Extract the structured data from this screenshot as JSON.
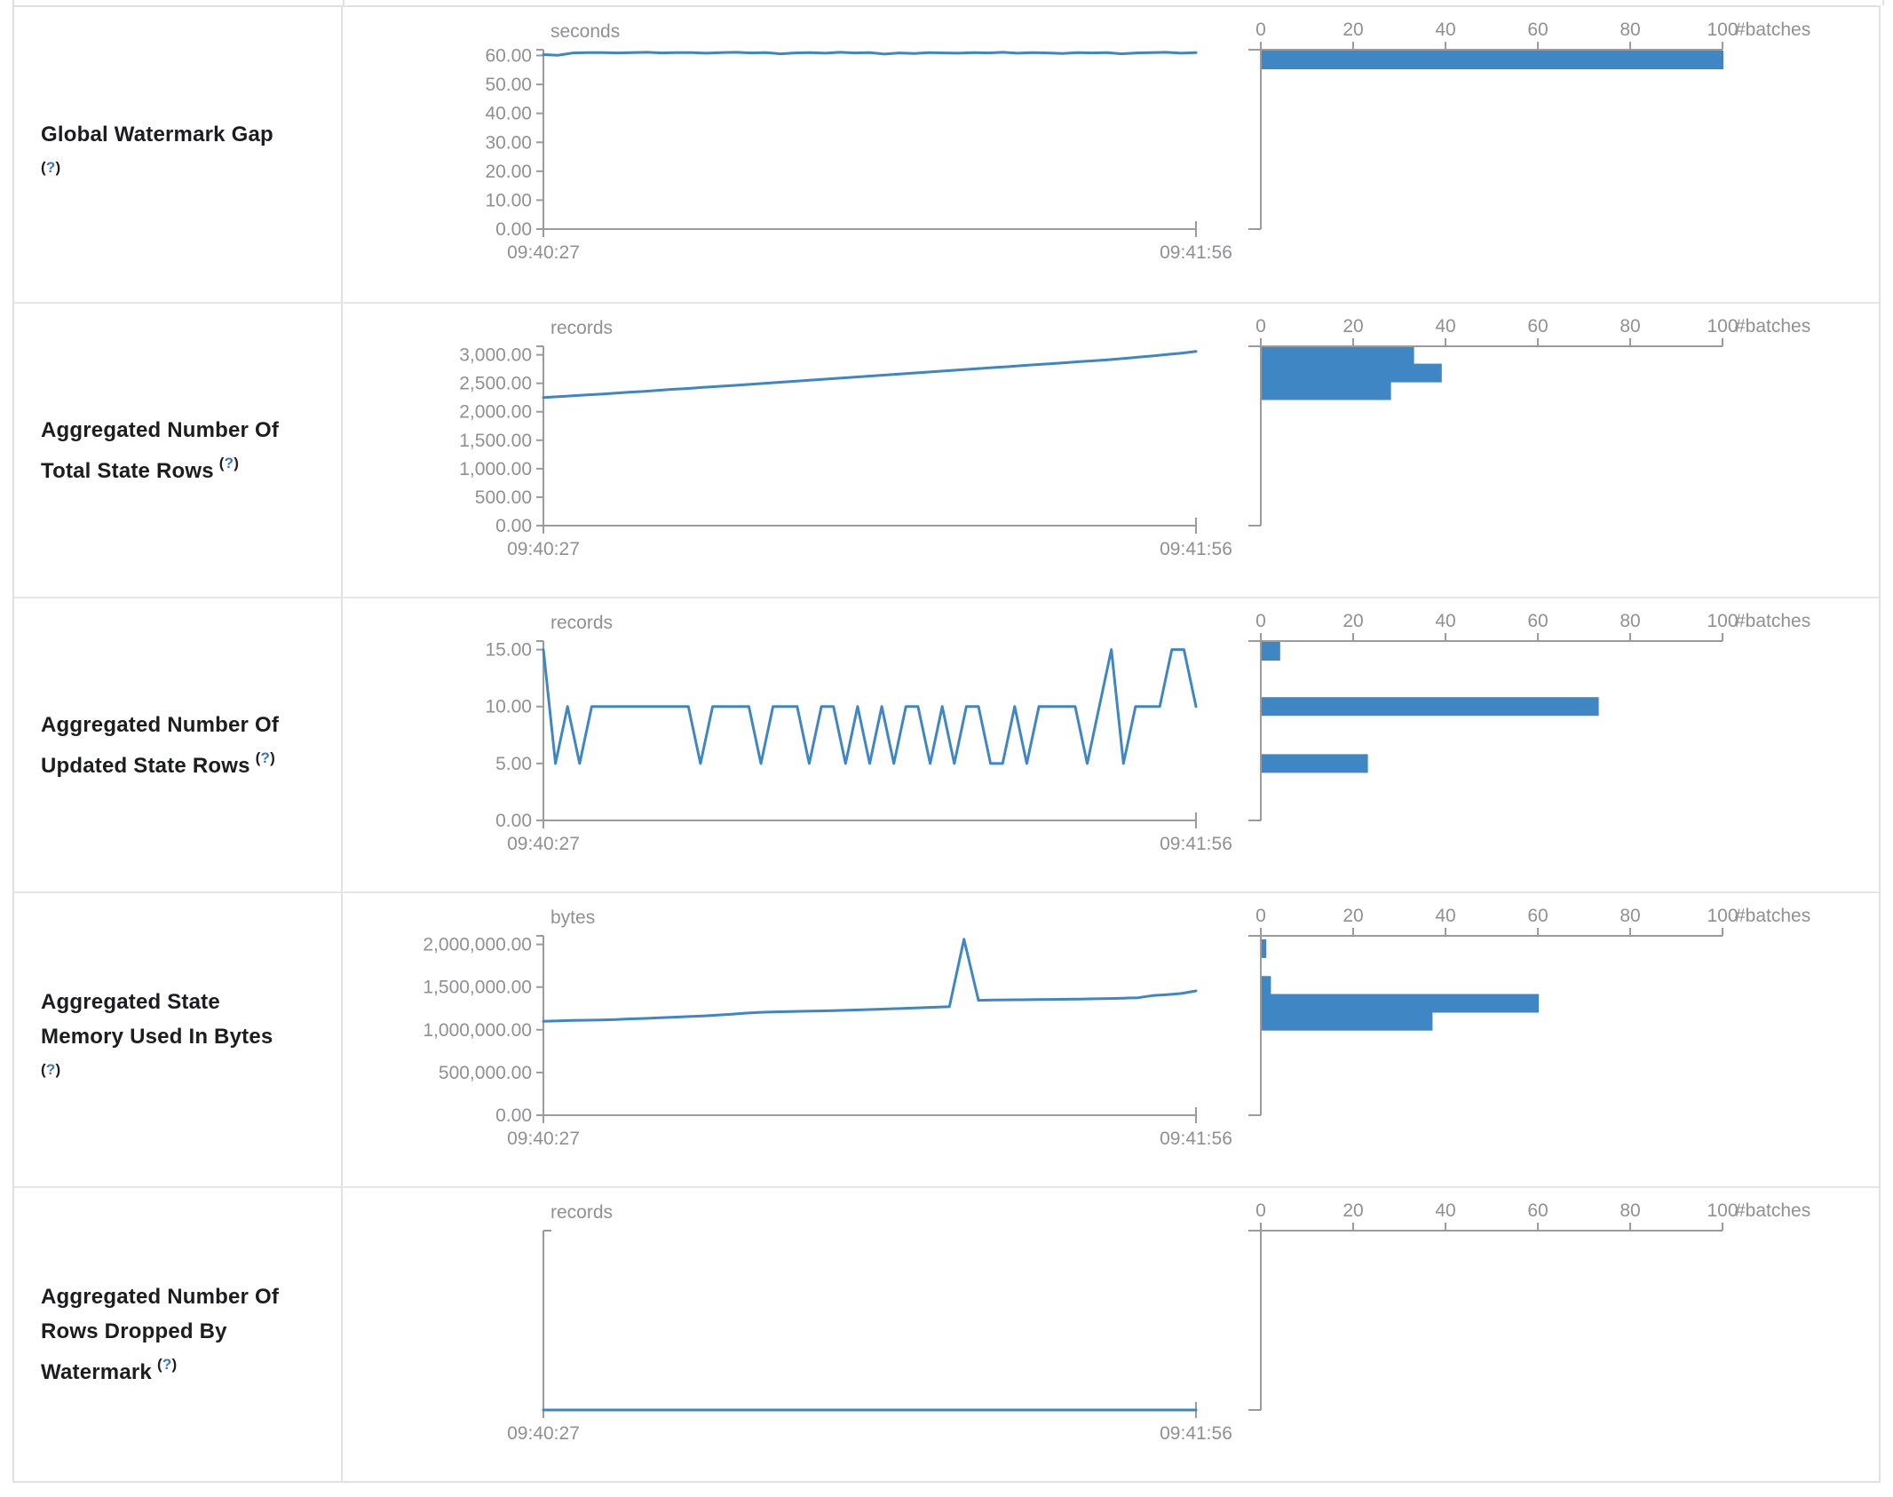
{
  "colors": {
    "series_blue": "#3e86c4",
    "axis_gray": "#999b9e",
    "tick_label_gray": "#8e9093",
    "label_text": "#1b1d20",
    "help_link_blue": "#3579b8",
    "row_border": "#e4e6ea"
  },
  "histogram_axis_label": "#batches",
  "rows": [
    {
      "label_lines": [
        "Global Watermark Gap"
      ],
      "help": "?",
      "help_on_own_line": true,
      "unit": "seconds",
      "x_tick_labels": [
        "09:40:27",
        "09:41:56"
      ],
      "y_tick_labels": [
        "60.00",
        "50.00",
        "40.00",
        "30.00",
        "20.00",
        "10.00",
        "0.00"
      ],
      "y_tick_values": [
        60,
        50,
        40,
        30,
        20,
        10,
        0
      ],
      "y_max": 62,
      "line_values": [
        60.3,
        60.1,
        60.9,
        61,
        61,
        60.9,
        61,
        61.1,
        60.9,
        61,
        61,
        60.8,
        61,
        61.1,
        60.9,
        61,
        60.6,
        60.9,
        61,
        60.8,
        61.1,
        60.9,
        61,
        60.5,
        60.9,
        60.7,
        61,
        60.9,
        60.8,
        61,
        60.9,
        61.1,
        60.8,
        61,
        60.9,
        60.7,
        61,
        60.9,
        61,
        60.6,
        60.9,
        61,
        61.1,
        60.8,
        61
      ],
      "histogram": {
        "tick_labels": [
          "0",
          "20",
          "40",
          "60",
          "80",
          "100"
        ],
        "tick_values": [
          0,
          20,
          40,
          60,
          80,
          100
        ],
        "bars": [
          {
            "count": 100,
            "bin_value": 58.5
          }
        ]
      }
    },
    {
      "label_lines": [
        "Aggregated Number Of",
        "Total State Rows"
      ],
      "help": "?",
      "help_on_own_line": false,
      "unit": "records",
      "x_tick_labels": [
        "09:40:27",
        "09:41:56"
      ],
      "y_tick_labels": [
        "3,000.00",
        "2,500.00",
        "2,000.00",
        "1,500.00",
        "1,000.00",
        "500.00",
        "0.00"
      ],
      "y_tick_values": [
        3000,
        2500,
        2000,
        1500,
        1000,
        500,
        0
      ],
      "y_max": 3150,
      "line_values": [
        2250,
        2265,
        2280,
        2295,
        2310,
        2328,
        2345,
        2360,
        2378,
        2395,
        2410,
        2428,
        2445,
        2460,
        2478,
        2495,
        2512,
        2530,
        2548,
        2565,
        2582,
        2600,
        2618,
        2635,
        2652,
        2670,
        2688,
        2705,
        2722,
        2740,
        2758,
        2775,
        2792,
        2810,
        2828,
        2845,
        2862,
        2880,
        2898,
        2915,
        2935,
        2958,
        2980,
        3005,
        3030,
        3060
      ],
      "histogram": {
        "tick_labels": [
          "0",
          "20",
          "40",
          "60",
          "80",
          "100"
        ],
        "tick_values": [
          0,
          20,
          40,
          60,
          80,
          100
        ],
        "bars": [
          {
            "count": 33,
            "bin_value": 2990
          },
          {
            "count": 39,
            "bin_value": 2680
          },
          {
            "count": 28,
            "bin_value": 2370
          }
        ]
      }
    },
    {
      "label_lines": [
        "Aggregated Number Of",
        "Updated State Rows"
      ],
      "help": "?",
      "help_on_own_line": false,
      "unit": "records",
      "x_tick_labels": [
        "09:40:27",
        "09:41:56"
      ],
      "y_tick_labels": [
        "15.00",
        "10.00",
        "5.00",
        "0.00"
      ],
      "y_tick_values": [
        15,
        10,
        5,
        0
      ],
      "y_max": 15.75,
      "line_values": [
        15,
        5,
        10,
        5,
        10,
        10,
        10,
        10,
        10,
        10,
        10,
        10,
        10,
        5,
        10,
        10,
        10,
        10,
        5,
        10,
        10,
        10,
        5,
        10,
        10,
        5,
        10,
        5,
        10,
        5,
        10,
        10,
        5,
        10,
        5,
        10,
        10,
        5,
        5,
        10,
        5,
        10,
        10,
        10,
        10,
        5,
        10,
        15,
        5,
        10,
        10,
        10,
        15,
        15,
        10
      ],
      "histogram": {
        "tick_labels": [
          "0",
          "20",
          "40",
          "60",
          "80",
          "100"
        ],
        "tick_values": [
          0,
          20,
          40,
          60,
          80,
          100
        ],
        "bars": [
          {
            "count": 4,
            "bin_value": 15
          },
          {
            "count": 73,
            "bin_value": 10
          },
          {
            "count": 23,
            "bin_value": 5
          }
        ]
      }
    },
    {
      "label_lines": [
        "Aggregated State",
        "Memory Used In Bytes"
      ],
      "help": "?",
      "help_on_own_line": true,
      "unit": "bytes",
      "x_tick_labels": [
        "09:40:27",
        "09:41:56"
      ],
      "y_tick_labels": [
        "2,000,000.00",
        "1,500,000.00",
        "1,000,000.00",
        "500,000.00",
        "0.00"
      ],
      "y_tick_values": [
        2000000,
        1500000,
        1000000,
        500000,
        0
      ],
      "y_max": 2100000,
      "line_values": [
        1100000,
        1105000,
        1110000,
        1112000,
        1115000,
        1120000,
        1128000,
        1133000,
        1140000,
        1148000,
        1155000,
        1162000,
        1172000,
        1182000,
        1196000,
        1205000,
        1210000,
        1214000,
        1217000,
        1220000,
        1224000,
        1229000,
        1234000,
        1240000,
        1246000,
        1252000,
        1258000,
        1264000,
        1271000,
        2060000,
        1345000,
        1348000,
        1350000,
        1352000,
        1354000,
        1356000,
        1358000,
        1360000,
        1363000,
        1366000,
        1370000,
        1375000,
        1400000,
        1412000,
        1425000,
        1455000
      ],
      "histogram": {
        "tick_labels": [
          "0",
          "20",
          "40",
          "60",
          "80",
          "100"
        ],
        "tick_values": [
          0,
          20,
          40,
          60,
          80,
          100
        ],
        "bars": [
          {
            "count": 1,
            "bin_value": 1950000
          },
          {
            "count": 2,
            "bin_value": 1520000
          },
          {
            "count": 60,
            "bin_value": 1310000
          },
          {
            "count": 37,
            "bin_value": 1100000
          }
        ]
      }
    },
    {
      "label_lines": [
        "Aggregated Number Of",
        "Rows Dropped By",
        "Watermark"
      ],
      "help": "?",
      "help_on_own_line": false,
      "unit": "records",
      "x_tick_labels": [
        "09:40:27",
        "09:41:56"
      ],
      "y_tick_labels": [],
      "y_tick_values": [],
      "y_max": 1,
      "line_values": [
        0,
        0,
        0,
        0,
        0,
        0,
        0,
        0,
        0,
        0,
        0,
        0,
        0,
        0,
        0,
        0,
        0,
        0,
        0,
        0,
        0,
        0,
        0,
        0,
        0,
        0,
        0,
        0,
        0,
        0
      ],
      "histogram": {
        "tick_labels": [
          "0",
          "20",
          "40",
          "60",
          "80",
          "100"
        ],
        "tick_values": [
          0,
          20,
          40,
          60,
          80,
          100
        ],
        "bars": []
      }
    }
  ]
}
